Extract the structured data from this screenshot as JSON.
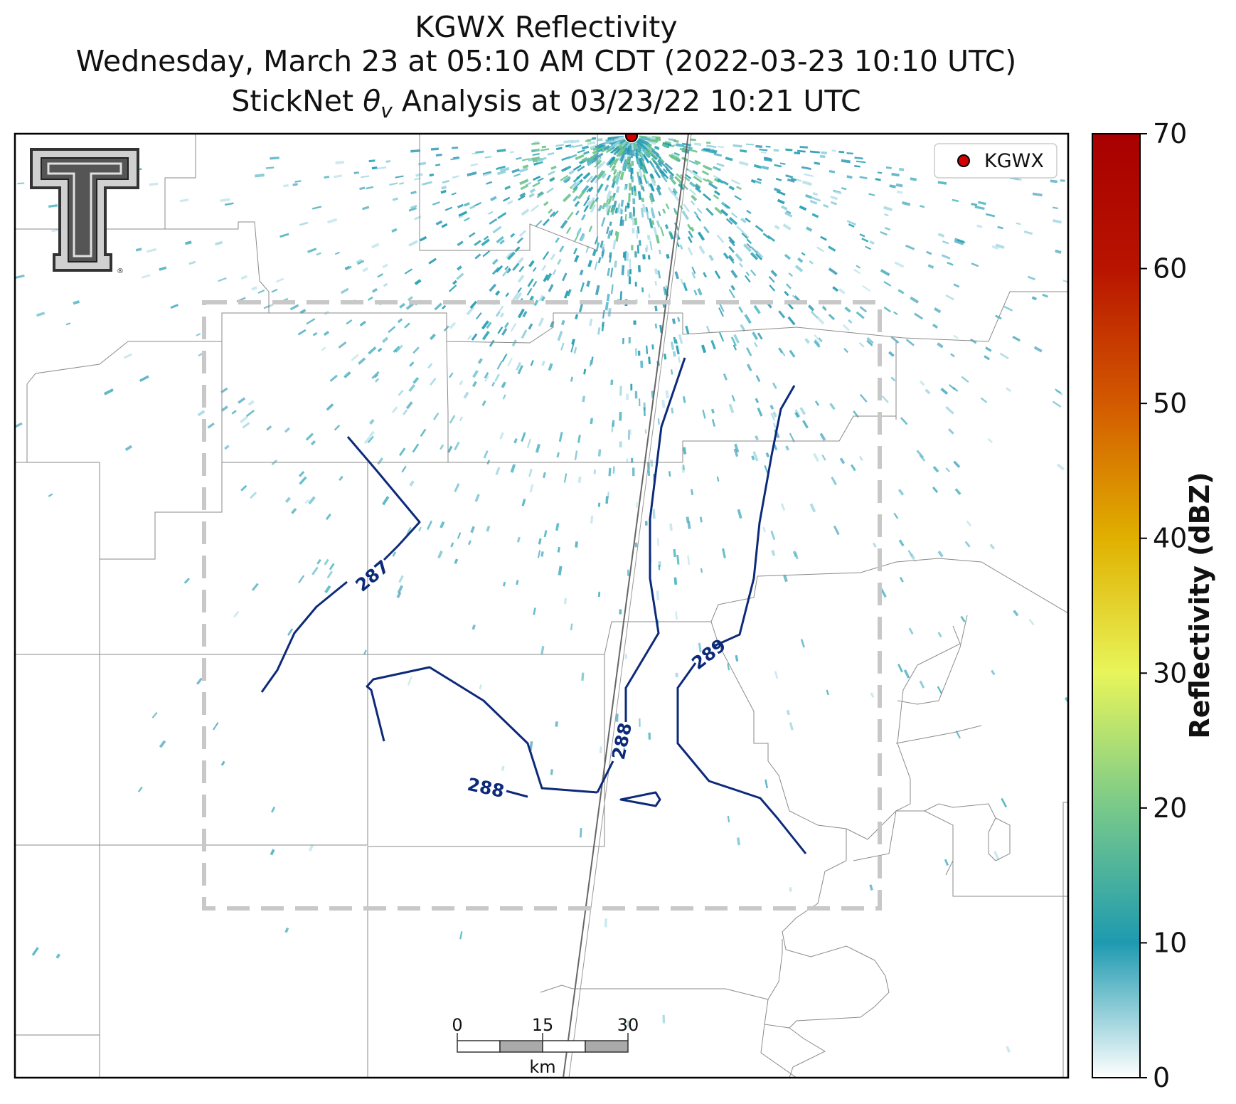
{
  "title": {
    "line1": "KGWX Reflectivity",
    "line2": "Wednesday, March 23 at 05:10 AM CDT (2022-03-23 10:10 UTC)",
    "line3_prefix": "StickNet ",
    "line3_theta": "θ",
    "line3_sub": "v",
    "line3_suffix": " Analysis at 03/23/22 10:21 UTC"
  },
  "legend": {
    "marker_label": "KGWX",
    "marker_color": "#d40000"
  },
  "colorbar": {
    "label": "Reflectivity (dBZ)",
    "ticks": [
      "0",
      "10",
      "20",
      "30",
      "40",
      "50",
      "60",
      "70"
    ],
    "range": [
      0,
      70
    ],
    "colors": [
      "#ffffff",
      "#1e9ab0",
      "#78c98a",
      "#e8f55a",
      "#e0b000",
      "#d35a00",
      "#a80000"
    ]
  },
  "contours": {
    "color": "#0d2a7a",
    "labels": [
      "287",
      "288",
      "288",
      "289"
    ]
  },
  "scale_bar": {
    "ticks": [
      "0",
      "15",
      "30"
    ],
    "unit": "km"
  },
  "logo": {
    "name": "Texas Tech Double T"
  },
  "colors": {
    "analysis_box": "#c8c8c8",
    "borders": "#8a8a8a",
    "radial": "#666666"
  }
}
